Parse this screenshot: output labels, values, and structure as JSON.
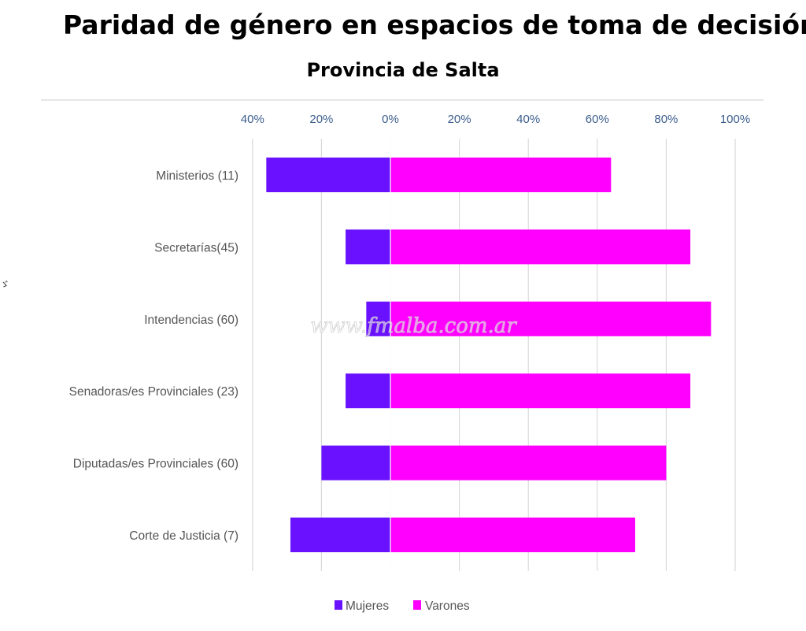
{
  "title": "Paridad de género en espacios de toma de decisión",
  "subtitle": "Provincia de Salta",
  "watermark": "www.fmalba.com.ar",
  "stray_mark": "ゞ",
  "colors": {
    "mujeres": "#6a11ff",
    "varones": "#ff00ff",
    "grid": "#d9d9d9",
    "tick_text": "#3b5d8c"
  },
  "chart_data": {
    "type": "bar",
    "orientation": "horizontal",
    "stacked": "diverging",
    "title": "Paridad de género en espacios de toma de decisión",
    "subtitle": "Provincia de Salta",
    "categories": [
      "Ministerios (11)",
      "Secretarías(45)",
      "Intendencias (60)",
      "Senadoras/es Provinciales (23)",
      "Diputadas/es Provinciales (60)",
      "Corte de Justicia (7)"
    ],
    "series": [
      {
        "name": "Mujeres",
        "color": "#6a11ff",
        "values": [
          36,
          13,
          7,
          13,
          20,
          29
        ]
      },
      {
        "name": "Varones",
        "color": "#ff00ff",
        "values": [
          64,
          87,
          93,
          87,
          80,
          71
        ]
      }
    ],
    "xlim": [
      -40,
      100
    ],
    "x_ticks": [
      "40%",
      "20%",
      "0%",
      "20%",
      "40%",
      "60%",
      "80%",
      "100%"
    ],
    "x_tick_values": [
      -40,
      -20,
      0,
      20,
      40,
      60,
      80,
      100
    ],
    "xlabel": "",
    "ylabel": "",
    "grid": "vertical",
    "legend": "bottom"
  }
}
